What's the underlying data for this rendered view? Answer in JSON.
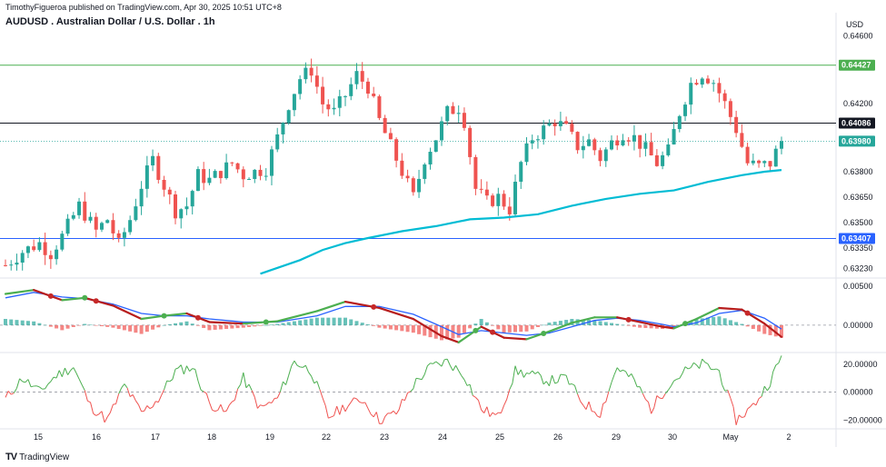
{
  "header": {
    "publisher": "TimothyFigueroa published on TradingView.com, Apr 30, 2025 10:51 UTC+8",
    "symbol_title": "AUDUSD . Australian Dollar / U.S. Dollar . 1h",
    "currency": "USD"
  },
  "brand": {
    "logo": "TV",
    "name": "TradingView"
  },
  "colors": {
    "up": "#26a69a",
    "down": "#ef5350",
    "ma": "#00bcd4",
    "line_top": "#4caf50",
    "line_mid": "#131722",
    "line_support": "#2962ff",
    "line_current": "#26a69a",
    "macd_fast_up": "#4caf50",
    "macd_fast_down": "#b71c1c",
    "macd_signal": "#2962ff",
    "osc_up": "#4caf50",
    "osc_down": "#ef5350"
  },
  "chart_data": {
    "type": "candlestick",
    "title": "AUDUSD . Australian Dollar / U.S. Dollar . 1h",
    "y_unit": "USD",
    "price_axis": {
      "ticks": [
        "0.64600",
        "0.64420",
        "0.64200",
        "0.63800",
        "0.63650",
        "0.63500",
        "0.63350",
        "0.63230"
      ],
      "ylim": [
        0.6318,
        0.6465
      ]
    },
    "x_axis": {
      "ticks": [
        "15",
        "16",
        "17",
        "18",
        "19",
        "22",
        "23",
        "24",
        "25",
        "26",
        "29",
        "30",
        "May",
        "2"
      ]
    },
    "horizontal_levels": [
      {
        "name": "resistance",
        "value": 0.64427,
        "label": "0.64427",
        "color": "#4caf50",
        "style": "solid"
      },
      {
        "name": "mid",
        "value": 0.64086,
        "label": "0.64086",
        "color": "#131722",
        "style": "solid"
      },
      {
        "name": "current",
        "value": 0.6398,
        "label": "0.63980",
        "color": "#26a69a",
        "style": "dotted"
      },
      {
        "name": "support",
        "value": 0.63407,
        "label": "0.63407",
        "color": "#2962ff",
        "style": "solid"
      }
    ],
    "price_path": [
      [
        0,
        0.6325
      ],
      [
        3,
        0.6333
      ],
      [
        6,
        0.6338
      ],
      [
        8,
        0.6332
      ],
      [
        10,
        0.6342
      ],
      [
        13,
        0.636
      ],
      [
        16,
        0.6345
      ],
      [
        18,
        0.6352
      ],
      [
        20,
        0.6337
      ],
      [
        22,
        0.6352
      ],
      [
        24,
        0.6372
      ],
      [
        26,
        0.6387
      ],
      [
        28,
        0.6372
      ],
      [
        30,
        0.6357
      ],
      [
        32,
        0.636
      ],
      [
        34,
        0.6378
      ],
      [
        36,
        0.6375
      ],
      [
        38,
        0.638
      ],
      [
        40,
        0.6385
      ],
      [
        42,
        0.6378
      ],
      [
        44,
        0.638
      ],
      [
        46,
        0.6382
      ],
      [
        48,
        0.64
      ],
      [
        50,
        0.642
      ],
      [
        52,
        0.6435
      ],
      [
        54,
        0.644
      ],
      [
        56,
        0.642
      ],
      [
        58,
        0.6415
      ],
      [
        60,
        0.6425
      ],
      [
        62,
        0.6437
      ],
      [
        64,
        0.643
      ],
      [
        66,
        0.641
      ],
      [
        68,
        0.6395
      ],
      [
        70,
        0.638
      ],
      [
        72,
        0.6365
      ],
      [
        74,
        0.6388
      ],
      [
        76,
        0.64
      ],
      [
        78,
        0.6415
      ],
      [
        80,
        0.6418
      ],
      [
        81,
        0.641
      ],
      [
        83,
        0.637
      ],
      [
        85,
        0.6362
      ],
      [
        87,
        0.6365
      ],
      [
        89,
        0.6358
      ],
      [
        91,
        0.6385
      ],
      [
        93,
        0.64
      ],
      [
        95,
        0.6405
      ],
      [
        97,
        0.641
      ],
      [
        99,
        0.6405
      ],
      [
        101,
        0.6395
      ],
      [
        103,
        0.6398
      ],
      [
        105,
        0.6388
      ],
      [
        107,
        0.6397
      ],
      [
        109,
        0.6403
      ],
      [
        111,
        0.64
      ],
      [
        113,
        0.6393
      ],
      [
        115,
        0.6385
      ],
      [
        117,
        0.6392
      ],
      [
        119,
        0.6415
      ],
      [
        121,
        0.6432
      ],
      [
        123,
        0.6438
      ],
      [
        125,
        0.6433
      ],
      [
        127,
        0.642
      ],
      [
        129,
        0.6405
      ],
      [
        131,
        0.6385
      ],
      [
        133,
        0.6383
      ],
      [
        135,
        0.6385
      ],
      [
        137,
        0.6398
      ]
    ],
    "moving_average": {
      "color": "#00bcd4",
      "points": [
        [
          45,
          0.632
        ],
        [
          52,
          0.6328
        ],
        [
          56,
          0.6334
        ],
        [
          60,
          0.6338
        ],
        [
          64,
          0.6341
        ],
        [
          70,
          0.6345
        ],
        [
          76,
          0.6348
        ],
        [
          82,
          0.6352
        ],
        [
          88,
          0.6353
        ],
        [
          94,
          0.6355
        ],
        [
          100,
          0.636
        ],
        [
          106,
          0.6364
        ],
        [
          112,
          0.6367
        ],
        [
          118,
          0.6369
        ],
        [
          124,
          0.6374
        ],
        [
          130,
          0.6378
        ],
        [
          134,
          0.638
        ],
        [
          137,
          0.6381
        ]
      ]
    },
    "macd_panel": {
      "axis_ticks": [
        "0.00500",
        "0.00000"
      ],
      "ylim": [
        -0.0028,
        0.0058
      ],
      "fast": [
        [
          0,
          0.004
        ],
        [
          5,
          0.0045
        ],
        [
          10,
          0.0032
        ],
        [
          14,
          0.0035
        ],
        [
          19,
          0.0025
        ],
        [
          24,
          0.0008
        ],
        [
          28,
          0.0012
        ],
        [
          32,
          0.0015
        ],
        [
          36,
          0.0004
        ],
        [
          42,
          0.0002
        ],
        [
          48,
          0.0005
        ],
        [
          55,
          0.0018
        ],
        [
          60,
          0.003
        ],
        [
          66,
          0.0022
        ],
        [
          72,
          0.0008
        ],
        [
          77,
          -0.0014
        ],
        [
          80,
          -0.0022
        ],
        [
          84,
          -0.0002
        ],
        [
          88,
          -0.0016
        ],
        [
          92,
          -0.0018
        ],
        [
          96,
          -0.0008
        ],
        [
          100,
          0.0003
        ],
        [
          104,
          0.001
        ],
        [
          108,
          0.001
        ],
        [
          112,
          0.0004
        ],
        [
          116,
          -0.0002
        ],
        [
          118,
          -0.0004
        ],
        [
          122,
          0.0008
        ],
        [
          126,
          0.0022
        ],
        [
          130,
          0.002
        ],
        [
          134,
          0.0002
        ],
        [
          137,
          -0.0015
        ]
      ],
      "signal": [
        [
          0,
          0.0035
        ],
        [
          5,
          0.0042
        ],
        [
          10,
          0.0036
        ],
        [
          14,
          0.0034
        ],
        [
          19,
          0.0027
        ],
        [
          24,
          0.0015
        ],
        [
          28,
          0.0012
        ],
        [
          32,
          0.0012
        ],
        [
          36,
          0.0008
        ],
        [
          42,
          0.0004
        ],
        [
          48,
          0.0004
        ],
        [
          55,
          0.0012
        ],
        [
          60,
          0.0024
        ],
        [
          66,
          0.0024
        ],
        [
          72,
          0.0014
        ],
        [
          77,
          -0.0002
        ],
        [
          80,
          -0.0012
        ],
        [
          84,
          -0.0007
        ],
        [
          88,
          -0.001
        ],
        [
          92,
          -0.0013
        ],
        [
          96,
          -0.001
        ],
        [
          100,
          -0.0002
        ],
        [
          104,
          0.0006
        ],
        [
          108,
          0.0009
        ],
        [
          112,
          0.0006
        ],
        [
          116,
          0.0001
        ],
        [
          118,
          -0.0002
        ],
        [
          122,
          0.0003
        ],
        [
          126,
          0.0015
        ],
        [
          130,
          0.0019
        ],
        [
          134,
          0.0009
        ],
        [
          137,
          -0.0005
        ]
      ]
    },
    "oscillator_panel": {
      "axis_ticks": [
        "20.00000",
        "0.00000",
        "−20.00000"
      ],
      "ylim": [
        -25,
        27
      ],
      "values": [
        [
          0,
          -5
        ],
        [
          3,
          10
        ],
        [
          6,
          0
        ],
        [
          9,
          12
        ],
        [
          12,
          18
        ],
        [
          15,
          -10
        ],
        [
          18,
          -20
        ],
        [
          21,
          5
        ],
        [
          24,
          -15
        ],
        [
          27,
          -5
        ],
        [
          30,
          15
        ],
        [
          33,
          18
        ],
        [
          36,
          -8
        ],
        [
          39,
          -15
        ],
        [
          42,
          10
        ],
        [
          45,
          -12
        ],
        [
          48,
          -5
        ],
        [
          51,
          22
        ],
        [
          54,
          15
        ],
        [
          57,
          -18
        ],
        [
          60,
          -10
        ],
        [
          63,
          -5
        ],
        [
          66,
          -20
        ],
        [
          69,
          -15
        ],
        [
          72,
          5
        ],
        [
          75,
          18
        ],
        [
          78,
          22
        ],
        [
          81,
          12
        ],
        [
          84,
          -12
        ],
        [
          87,
          -18
        ],
        [
          90,
          15
        ],
        [
          93,
          12
        ],
        [
          96,
          8
        ],
        [
          99,
          10
        ],
        [
          102,
          -8
        ],
        [
          105,
          -15
        ],
        [
          108,
          18
        ],
        [
          111,
          8
        ],
        [
          114,
          -12
        ],
        [
          117,
          5
        ],
        [
          120,
          15
        ],
        [
          123,
          20
        ],
        [
          126,
          15
        ],
        [
          129,
          -20
        ],
        [
          132,
          -10
        ],
        [
          135,
          8
        ],
        [
          137,
          25
        ]
      ]
    }
  }
}
